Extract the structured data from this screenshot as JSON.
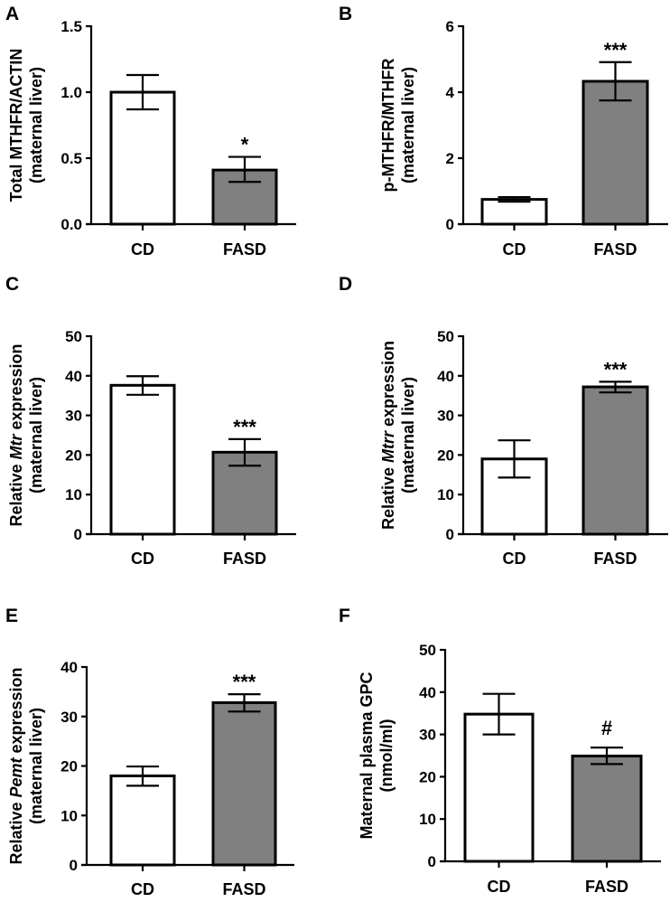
{
  "colors": {
    "control": "#ffffff",
    "treatment": "#808080",
    "stroke": "#000000"
  },
  "chart_data": [
    {
      "panel": "A",
      "type": "bar",
      "categories": [
        "CD",
        "FASD"
      ],
      "values": [
        1.0,
        0.41
      ],
      "errors": [
        [
          0.87,
          1.13
        ],
        [
          0.32,
          0.51
        ]
      ],
      "significance": [
        "",
        "*"
      ],
      "ylabel_line1": "Total MTHFR/ACTIN",
      "ylabel_italic": "",
      "ylabel_line1_suffix": "",
      "ylabel_line2": "(maternal liver)",
      "ylim": [
        0,
        1.5
      ],
      "yticks": [
        0,
        0.5,
        1.0,
        1.5
      ],
      "ytick_labels": [
        "0.0",
        "0.5",
        "1.0",
        "1.5"
      ],
      "grid": false
    },
    {
      "panel": "B",
      "type": "bar",
      "categories": [
        "CD",
        "FASD"
      ],
      "values": [
        0.75,
        4.33
      ],
      "errors": [
        [
          0.68,
          0.82
        ],
        [
          3.75,
          4.91
        ]
      ],
      "significance": [
        "",
        "***"
      ],
      "ylabel_line1": "p-MTHFR/MTHFR",
      "ylabel_italic": "",
      "ylabel_line1_suffix": "",
      "ylabel_line2": "(maternal liver)",
      "ylim": [
        0,
        6
      ],
      "yticks": [
        0,
        2,
        4,
        6
      ],
      "ytick_labels": [
        "0",
        "2",
        "4",
        "6"
      ],
      "grid": false
    },
    {
      "panel": "C",
      "type": "bar",
      "categories": [
        "CD",
        "FASD"
      ],
      "values": [
        37.6,
        20.7
      ],
      "errors": [
        [
          35.2,
          39.9
        ],
        [
          17.3,
          24.0
        ]
      ],
      "significance": [
        "",
        "***"
      ],
      "ylabel_line1": "Relative ",
      "ylabel_italic": "Mtr",
      "ylabel_line1_suffix": " expression",
      "ylabel_line2": "(maternal liver)",
      "ylim": [
        0,
        50
      ],
      "yticks": [
        0,
        10,
        20,
        30,
        40,
        50
      ],
      "ytick_labels": [
        "0",
        "10",
        "20",
        "30",
        "40",
        "50"
      ],
      "grid": false
    },
    {
      "panel": "D",
      "type": "bar",
      "categories": [
        "CD",
        "FASD"
      ],
      "values": [
        19.0,
        37.2
      ],
      "errors": [
        [
          14.3,
          23.7
        ],
        [
          35.8,
          38.5
        ]
      ],
      "significance": [
        "",
        "***"
      ],
      "ylabel_line1": "Relative ",
      "ylabel_italic": "Mtrr",
      "ylabel_line1_suffix": " expression",
      "ylabel_line2": "(maternal liver)",
      "ylim": [
        0,
        50
      ],
      "yticks": [
        0,
        10,
        20,
        30,
        40,
        50
      ],
      "ytick_labels": [
        "0",
        "10",
        "20",
        "30",
        "40",
        "50"
      ],
      "grid": false
    },
    {
      "panel": "E",
      "type": "bar",
      "categories": [
        "CD",
        "FASD"
      ],
      "values": [
        18.0,
        32.8
      ],
      "errors": [
        [
          16.0,
          19.9
        ],
        [
          31.0,
          34.5
        ]
      ],
      "significance": [
        "",
        "***"
      ],
      "ylabel_line1": "Relative ",
      "ylabel_italic": "Pemt",
      "ylabel_line1_suffix": " expression",
      "ylabel_line2": "(maternal liver)",
      "ylim": [
        0,
        40
      ],
      "yticks": [
        0,
        10,
        20,
        30,
        40
      ],
      "ytick_labels": [
        "0",
        "10",
        "20",
        "30",
        "40"
      ],
      "grid": false
    },
    {
      "panel": "F",
      "type": "bar",
      "categories": [
        "CD",
        "FASD"
      ],
      "values": [
        34.8,
        24.9
      ],
      "errors": [
        [
          30.0,
          39.6
        ],
        [
          23.0,
          26.9
        ]
      ],
      "significance": [
        "",
        "#"
      ],
      "ylabel_line1": "Maternal plasma GPC",
      "ylabel_italic": "",
      "ylabel_line1_suffix": "",
      "ylabel_line2": "(nmol/ml)",
      "ylim": [
        0,
        50
      ],
      "yticks": [
        0,
        10,
        20,
        30,
        40,
        50
      ],
      "ytick_labels": [
        "0",
        "10",
        "20",
        "30",
        "40",
        "50"
      ],
      "grid": false
    }
  ]
}
